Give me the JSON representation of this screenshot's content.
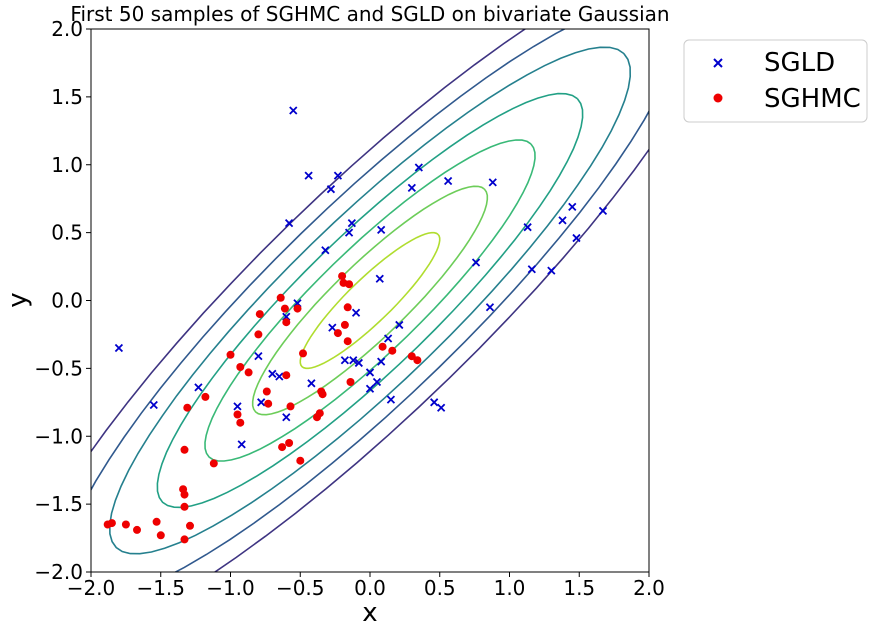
{
  "chart_data": {
    "type": "scatter",
    "title": "First 50 samples of SGHMC and SGLD on bivariate Gaussian",
    "xlabel": "x",
    "ylabel": "y",
    "xlim": [
      -2.0,
      2.0
    ],
    "ylim": [
      -2.0,
      2.0
    ],
    "xticks": [
      "−2.0",
      "−1.5",
      "−1.0",
      "−0.5",
      "0.0",
      "0.5",
      "1.0",
      "1.5",
      "2.0"
    ],
    "yticks": [
      "−2.0",
      "−1.5",
      "−1.0",
      "−0.5",
      "0.0",
      "0.5",
      "1.0",
      "1.5",
      "2.0"
    ],
    "legend_position": "outside-top-right",
    "contours": {
      "mean": [
        0,
        0
      ],
      "covariance": [
        [
          1.0,
          0.9
        ],
        [
          0.9,
          1.0
        ]
      ],
      "level_count": 7,
      "colors": [
        "#3e3482",
        "#30598e",
        "#25808e",
        "#22a085",
        "#39b977",
        "#6dcd59",
        "#b0dd2f"
      ]
    },
    "series": [
      {
        "name": "SGLD",
        "marker": "x",
        "color": "#0000cc",
        "points": [
          [
            -1.8,
            -0.35
          ],
          [
            -1.55,
            -0.77
          ],
          [
            -1.23,
            -0.64
          ],
          [
            -0.95,
            -0.78
          ],
          [
            -0.92,
            -1.06
          ],
          [
            -0.8,
            -0.41
          ],
          [
            -0.78,
            -0.75
          ],
          [
            -0.7,
            -0.54
          ],
          [
            -0.65,
            -0.56
          ],
          [
            -0.6,
            -0.12
          ],
          [
            -0.6,
            -0.86
          ],
          [
            -0.58,
            0.57
          ],
          [
            -0.55,
            1.4
          ],
          [
            -0.52,
            -0.02
          ],
          [
            -0.44,
            0.92
          ],
          [
            -0.42,
            -0.61
          ],
          [
            -0.32,
            0.37
          ],
          [
            -0.28,
            0.82
          ],
          [
            -0.27,
            -0.2
          ],
          [
            -0.23,
            0.92
          ],
          [
            -0.18,
            -0.44
          ],
          [
            -0.15,
            0.5
          ],
          [
            -0.13,
            0.57
          ],
          [
            -0.12,
            -0.44
          ],
          [
            -0.1,
            -0.09
          ],
          [
            -0.08,
            -0.46
          ],
          [
            0.0,
            -0.53
          ],
          [
            0.0,
            -0.65
          ],
          [
            0.05,
            -0.6
          ],
          [
            0.07,
            0.16
          ],
          [
            0.08,
            -0.45
          ],
          [
            0.08,
            0.52
          ],
          [
            0.13,
            -0.28
          ],
          [
            0.15,
            -0.73
          ],
          [
            0.21,
            -0.18
          ],
          [
            0.3,
            0.83
          ],
          [
            0.35,
            0.98
          ],
          [
            0.46,
            -0.75
          ],
          [
            0.51,
            -0.79
          ],
          [
            0.56,
            0.88
          ],
          [
            0.76,
            0.28
          ],
          [
            0.86,
            -0.05
          ],
          [
            0.88,
            0.87
          ],
          [
            1.13,
            0.54
          ],
          [
            1.16,
            0.23
          ],
          [
            1.3,
            0.22
          ],
          [
            1.38,
            0.59
          ],
          [
            1.45,
            0.69
          ],
          [
            1.48,
            0.46
          ],
          [
            1.67,
            0.66
          ]
        ]
      },
      {
        "name": "SGHMC",
        "marker": "o",
        "color": "#ee0000",
        "points": [
          [
            -1.88,
            -1.65
          ],
          [
            -1.85,
            -1.64
          ],
          [
            -1.75,
            -1.65
          ],
          [
            -1.67,
            -1.69
          ],
          [
            -1.53,
            -1.63
          ],
          [
            -1.5,
            -1.73
          ],
          [
            -1.34,
            -1.39
          ],
          [
            -1.33,
            -1.43
          ],
          [
            -1.33,
            -1.52
          ],
          [
            -1.33,
            -1.76
          ],
          [
            -1.33,
            -1.1
          ],
          [
            -1.31,
            -0.79
          ],
          [
            -1.29,
            -1.66
          ],
          [
            -1.18,
            -0.71
          ],
          [
            -1.12,
            -1.2
          ],
          [
            -1.0,
            -0.4
          ],
          [
            -0.95,
            -0.84
          ],
          [
            -0.93,
            -0.49
          ],
          [
            -0.93,
            -0.9
          ],
          [
            -0.87,
            -0.53
          ],
          [
            -0.8,
            -0.25
          ],
          [
            -0.79,
            -0.1
          ],
          [
            -0.74,
            -0.67
          ],
          [
            -0.73,
            -0.76
          ],
          [
            -0.64,
            0.02
          ],
          [
            -0.63,
            -1.08
          ],
          [
            -0.61,
            -0.06
          ],
          [
            -0.6,
            -0.16
          ],
          [
            -0.6,
            -0.55
          ],
          [
            -0.58,
            -1.05
          ],
          [
            -0.57,
            -0.78
          ],
          [
            -0.52,
            -0.06
          ],
          [
            -0.5,
            -1.18
          ],
          [
            -0.48,
            -0.39
          ],
          [
            -0.38,
            -0.86
          ],
          [
            -0.36,
            -0.83
          ],
          [
            -0.35,
            -0.67
          ],
          [
            -0.34,
            -0.69
          ],
          [
            -0.23,
            -0.24
          ],
          [
            -0.2,
            0.18
          ],
          [
            -0.19,
            0.13
          ],
          [
            -0.18,
            -0.18
          ],
          [
            -0.16,
            -0.3
          ],
          [
            -0.16,
            -0.05
          ],
          [
            -0.15,
            0.12
          ],
          [
            -0.14,
            -0.6
          ],
          [
            0.09,
            -0.34
          ],
          [
            0.16,
            -0.37
          ],
          [
            0.3,
            -0.41
          ],
          [
            0.34,
            -0.44
          ]
        ]
      }
    ]
  }
}
